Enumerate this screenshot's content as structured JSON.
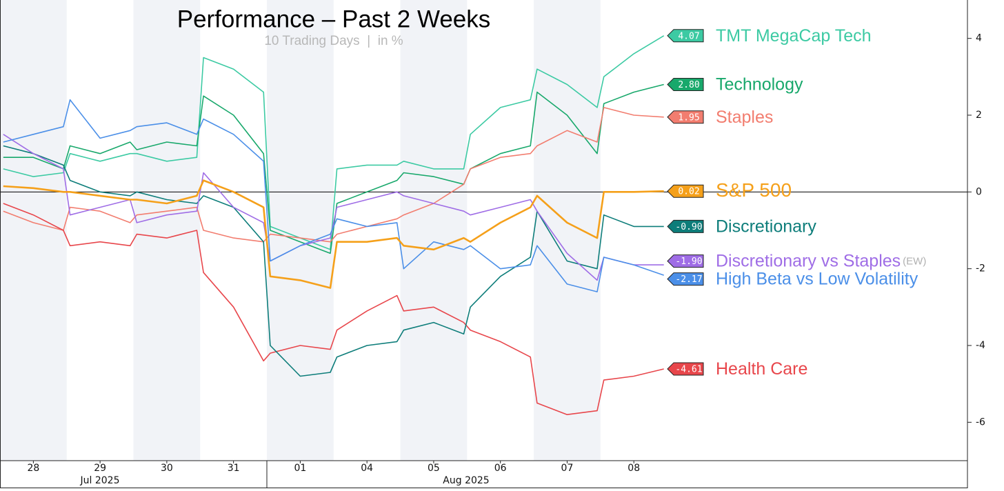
{
  "chart_data": {
    "type": "line",
    "title": "Performance – Past 2 Weeks",
    "subtitle": "10 Trading Days  |  in %",
    "x": [
      0.05,
      0.5,
      0.95,
      1.05,
      1.5,
      1.95,
      2.05,
      2.5,
      2.95,
      3.05,
      3.5,
      3.95,
      4.05,
      4.5,
      4.95,
      5.05,
      5.5,
      5.95,
      6.05,
      6.5,
      6.95,
      7.05,
      7.5,
      7.95,
      8.05,
      8.5,
      8.95,
      9.05,
      9.5,
      9.95
    ],
    "xlim": [
      0,
      14.5
    ],
    "xticks": [
      {
        "value": 0.5,
        "label": "28"
      },
      {
        "value": 1.5,
        "label": "29"
      },
      {
        "value": 2.5,
        "label": "30"
      },
      {
        "value": 3.5,
        "label": "31"
      },
      {
        "value": 4.5,
        "label": "01"
      },
      {
        "value": 5.5,
        "label": "04"
      },
      {
        "value": 6.5,
        "label": "05"
      },
      {
        "value": 7.5,
        "label": "06"
      },
      {
        "value": 8.5,
        "label": "07"
      },
      {
        "value": 9.5,
        "label": "08"
      }
    ],
    "x_groups": [
      "Jul 2025",
      "Aug 2025"
    ],
    "ylim": [
      -7,
      5
    ],
    "yticks": [
      -6,
      -4,
      -2,
      0,
      2,
      4
    ],
    "series": [
      {
        "name": "TMT MegaCap Tech",
        "color": "#3ccaa3",
        "values": [
          0.6,
          0.4,
          0.5,
          1.0,
          0.8,
          1.0,
          1.0,
          0.8,
          0.9,
          3.5,
          3.2,
          2.6,
          -0.9,
          -1.2,
          -1.5,
          0.6,
          0.7,
          0.7,
          0.8,
          0.6,
          0.6,
          1.5,
          2.2,
          2.4,
          3.2,
          2.8,
          2.2,
          3.0,
          3.6,
          4.07
        ]
      },
      {
        "name": "Technology",
        "color": "#18a86b",
        "values": [
          0.9,
          0.9,
          0.6,
          1.2,
          1.0,
          1.3,
          1.1,
          1.3,
          1.2,
          2.5,
          2.0,
          1.0,
          -1.0,
          -1.3,
          -1.6,
          -0.3,
          0.0,
          0.3,
          0.5,
          0.4,
          0.2,
          0.6,
          1.0,
          1.2,
          2.6,
          2.0,
          1.0,
          2.3,
          2.6,
          2.8
        ],
        "value_labels": [
          null,
          null,
          null,
          null,
          null,
          null,
          null,
          null,
          null,
          null,
          null,
          null,
          null,
          null,
          null,
          null,
          null,
          null,
          null,
          null,
          null,
          null,
          null,
          null,
          null,
          null,
          null,
          null,
          null,
          "2.80"
        ]
      },
      {
        "name": "Staples",
        "color": "#f27d6f",
        "values": [
          -0.5,
          -0.8,
          -1.0,
          -0.4,
          -0.5,
          -0.8,
          -0.6,
          -0.5,
          -0.4,
          -1.0,
          -1.2,
          -1.3,
          -1.1,
          -1.2,
          -1.3,
          -1.1,
          -0.9,
          -0.7,
          -0.6,
          -0.3,
          0.2,
          0.6,
          0.9,
          1.0,
          1.2,
          1.6,
          1.3,
          2.2,
          2.0,
          1.95
        ]
      },
      {
        "name": "Health Care",
        "color": "#e8464b",
        "values": [
          -0.3,
          -0.6,
          -1.0,
          -1.4,
          -1.3,
          -1.4,
          -1.1,
          -1.2,
          -1.0,
          -2.1,
          -3.0,
          -4.4,
          -4.2,
          -4.0,
          -4.1,
          -3.6,
          -3.1,
          -2.7,
          -3.1,
          -3.0,
          -3.4,
          -3.6,
          -3.9,
          -4.3,
          -5.5,
          -5.8,
          -5.7,
          -4.9,
          -4.8,
          -4.61
        ]
      },
      {
        "name": "Discretionary",
        "color": "#0d7d7a",
        "values": [
          1.2,
          1.0,
          0.7,
          0.3,
          0.0,
          -0.1,
          0.0,
          -0.2,
          -0.3,
          -0.1,
          -0.4,
          -1.3,
          -4.0,
          -4.8,
          -4.7,
          -4.3,
          -4.0,
          -3.9,
          -3.6,
          -3.4,
          -3.7,
          -3.0,
          -2.2,
          -1.7,
          -0.5,
          -1.8,
          -2.0,
          -0.6,
          -0.9,
          -0.9
        ],
        "value_labels": [
          null,
          null,
          null,
          null,
          null,
          null,
          null,
          null,
          null,
          null,
          null,
          null,
          null,
          null,
          null,
          null,
          null,
          null,
          null,
          null,
          null,
          null,
          null,
          null,
          null,
          null,
          null,
          null,
          null,
          "-0.90"
        ]
      },
      {
        "name": "Discretionary vs Staples",
        "note": "(EW)",
        "color": "#9f6de6",
        "values": [
          1.5,
          1.0,
          0.6,
          -0.6,
          -0.4,
          -0.2,
          -0.8,
          -0.6,
          -0.5,
          0.5,
          -0.4,
          -0.8,
          -1.8,
          -1.4,
          -1.2,
          -0.4,
          -0.2,
          0.0,
          -0.1,
          -0.3,
          -0.5,
          -0.6,
          -0.4,
          -0.2,
          -0.5,
          -1.6,
          -2.3,
          -1.7,
          -1.9,
          -1.9
        ],
        "value_labels": [
          null,
          null,
          null,
          null,
          null,
          null,
          null,
          null,
          null,
          null,
          null,
          null,
          null,
          null,
          null,
          null,
          null,
          null,
          null,
          null,
          null,
          null,
          null,
          null,
          null,
          null,
          null,
          null,
          null,
          "-1.90"
        ]
      },
      {
        "name": "High Beta vs Low Volatility",
        "color": "#4b8fe8",
        "values": [
          1.3,
          1.5,
          1.7,
          2.4,
          1.4,
          1.6,
          1.7,
          1.8,
          1.5,
          1.9,
          1.5,
          0.8,
          -1.8,
          -1.4,
          -1.1,
          -0.7,
          -0.9,
          -0.8,
          -2.0,
          -1.3,
          -1.5,
          -1.4,
          -2.0,
          -1.9,
          -1.4,
          -2.4,
          -2.6,
          -1.7,
          -1.9,
          -2.17
        ]
      },
      {
        "name": "S&P 500",
        "color": "#f5a01a",
        "values": [
          0.15,
          0.1,
          0.0,
          0.0,
          -0.1,
          -0.2,
          -0.2,
          -0.3,
          -0.1,
          0.3,
          0.0,
          -0.4,
          -2.2,
          -2.3,
          -2.5,
          -1.3,
          -1.3,
          -1.2,
          -1.4,
          -1.5,
          -1.2,
          -1.3,
          -0.8,
          -0.4,
          -0.1,
          -0.8,
          -1.2,
          0.0,
          0.0,
          0.02
        ]
      }
    ]
  }
}
